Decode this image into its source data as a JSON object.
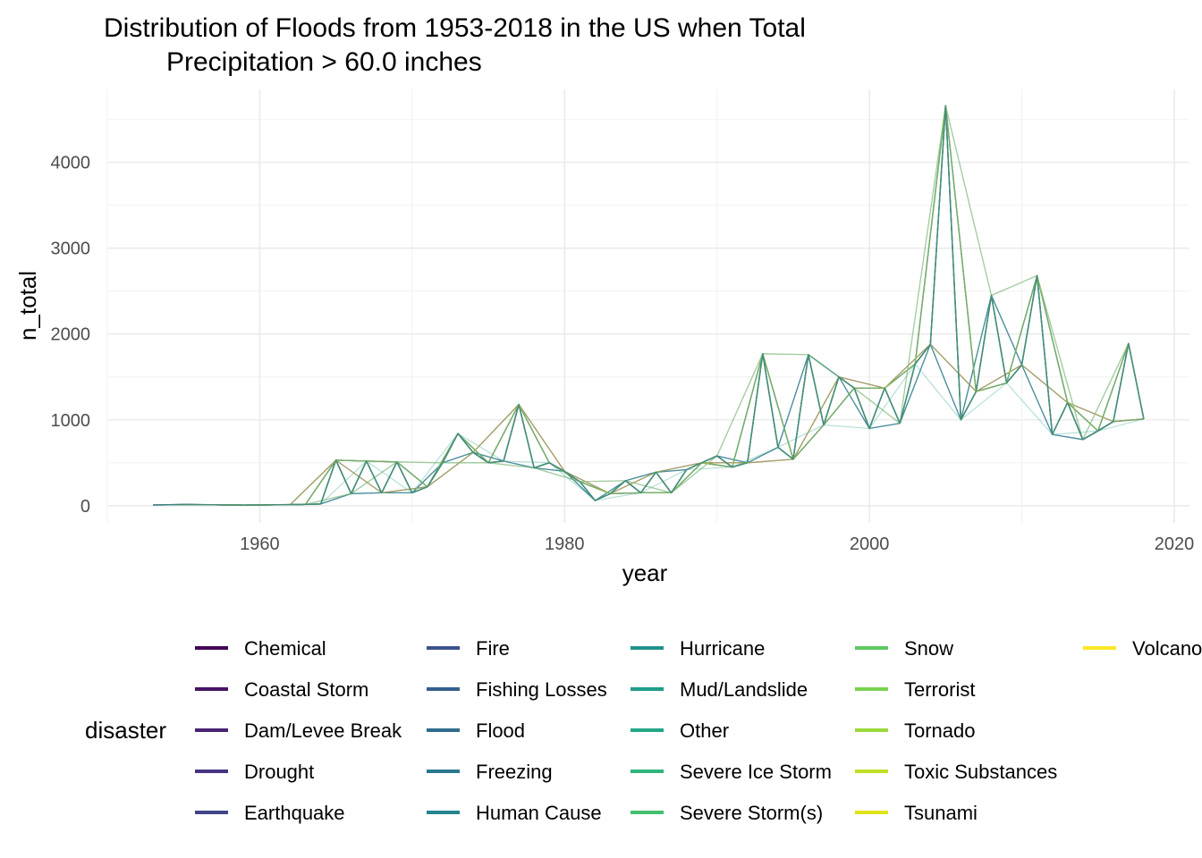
{
  "chart_data": {
    "type": "line",
    "title_line1": "Distribution of Floods from 1953-2018 in the US when Total",
    "title_line2": "Precipitation > 60.0 inches",
    "xlabel": "year",
    "ylabel": "n_total",
    "xlim": [
      1950,
      2021
    ],
    "ylim": [
      -200,
      4850
    ],
    "x_ticks": [
      {
        "value": 1960,
        "label": "1960"
      },
      {
        "value": 1980,
        "label": "1980"
      },
      {
        "value": 2000,
        "label": "2000"
      },
      {
        "value": 2020,
        "label": "2020"
      }
    ],
    "y_ticks": [
      {
        "value": 0,
        "label": "0"
      },
      {
        "value": 1000,
        "label": "1000"
      },
      {
        "value": 2000,
        "label": "2000"
      },
      {
        "value": 3000,
        "label": "3000"
      },
      {
        "value": 4000,
        "label": "4000"
      }
    ],
    "grid": true,
    "legend_title": "disaster",
    "legend_position": "bottom",
    "totals": [
      [
        1953,
        8
      ],
      [
        1954,
        10
      ],
      [
        1955,
        15
      ],
      [
        1956,
        12
      ],
      [
        1957,
        10
      ],
      [
        1958,
        8
      ],
      [
        1959,
        6
      ],
      [
        1960,
        8
      ],
      [
        1961,
        10
      ],
      [
        1962,
        12
      ],
      [
        1963,
        15
      ],
      [
        1964,
        20
      ],
      [
        1965,
        530
      ],
      [
        1966,
        140
      ],
      [
        1967,
        520
      ],
      [
        1968,
        150
      ],
      [
        1969,
        510
      ],
      [
        1970,
        150
      ],
      [
        1971,
        220
      ],
      [
        1972,
        500
      ],
      [
        1973,
        840
      ],
      [
        1974,
        620
      ],
      [
        1975,
        500
      ],
      [
        1976,
        520
      ],
      [
        1977,
        1180
      ],
      [
        1978,
        440
      ],
      [
        1979,
        500
      ],
      [
        1980,
        400
      ],
      [
        1981,
        280
      ],
      [
        1982,
        60
      ],
      [
        1983,
        140
      ],
      [
        1984,
        290
      ],
      [
        1985,
        150
      ],
      [
        1986,
        390
      ],
      [
        1987,
        150
      ],
      [
        1988,
        420
      ],
      [
        1989,
        500
      ],
      [
        1990,
        580
      ],
      [
        1991,
        450
      ],
      [
        1992,
        500
      ],
      [
        1993,
        1770
      ],
      [
        1994,
        680
      ],
      [
        1995,
        540
      ],
      [
        1996,
        1760
      ],
      [
        1997,
        940
      ],
      [
        1998,
        1500
      ],
      [
        1999,
        1370
      ],
      [
        2000,
        900
      ],
      [
        2001,
        1370
      ],
      [
        2002,
        960
      ],
      [
        2003,
        1650
      ],
      [
        2004,
        1880
      ],
      [
        2005,
        4660
      ],
      [
        2006,
        1000
      ],
      [
        2007,
        1330
      ],
      [
        2008,
        2450
      ],
      [
        2009,
        1430
      ],
      [
        2010,
        1640
      ],
      [
        2011,
        2680
      ],
      [
        2012,
        830
      ],
      [
        2013,
        1200
      ],
      [
        2014,
        770
      ],
      [
        2015,
        870
      ],
      [
        2016,
        980
      ],
      [
        2017,
        1890
      ],
      [
        2018,
        1010
      ]
    ],
    "series": [
      {
        "name": "Chemical",
        "color": "#440154"
      },
      {
        "name": "Coastal Storm",
        "color": "#471365"
      },
      {
        "name": "Dam/Levee Break",
        "color": "#482475"
      },
      {
        "name": "Drought",
        "color": "#463480"
      },
      {
        "name": "Earthquake",
        "color": "#414487"
      },
      {
        "name": "Fire",
        "color": "#3b528b"
      },
      {
        "name": "Fishing Losses",
        "color": "#355f8d"
      },
      {
        "name": "Flood",
        "color": "#2f6c8e"
      },
      {
        "name": "Freezing",
        "color": "#2a788e"
      },
      {
        "name": "Human Cause",
        "color": "#25848e"
      },
      {
        "name": "Hurricane",
        "color": "#21918c"
      },
      {
        "name": "Mud/Landslide",
        "color": "#1e9c89"
      },
      {
        "name": "Other",
        "color": "#22a884"
      },
      {
        "name": "Severe Ice Storm",
        "color": "#2fb47c"
      },
      {
        "name": "Severe Storm(s)",
        "color": "#44bf70"
      },
      {
        "name": "Snow",
        "color": "#5ec962"
      },
      {
        "name": "Terrorist",
        "color": "#7ad151"
      },
      {
        "name": "Tornado",
        "color": "#9bd93c"
      },
      {
        "name": "Toxic Substances",
        "color": "#bddf26"
      },
      {
        "name": "Tsunami",
        "color": "#dfe318"
      },
      {
        "name": "Volcano",
        "color": "#fde725"
      }
    ]
  }
}
